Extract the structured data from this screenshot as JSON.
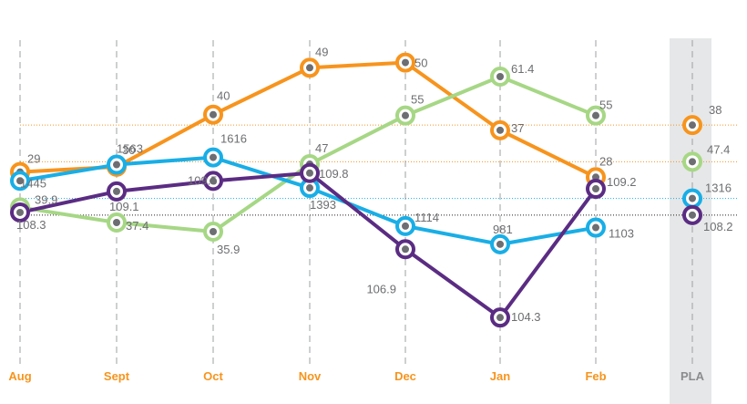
{
  "chart_data": {
    "type": "line",
    "categories": [
      "Aug",
      "Sept",
      "Oct",
      "Nov",
      "Dec",
      "Jan",
      "Feb"
    ],
    "target_label": "PLA",
    "grid": "dashed vertical lines",
    "series": [
      {
        "color": "#f7941d",
        "values": [
          29,
          30,
          40,
          49,
          50,
          37,
          28
        ],
        "labels": [
          "29",
          "30",
          "40",
          "49",
          "50",
          "37",
          "28"
        ],
        "target": 38,
        "target_label": "38",
        "ylim": [
          -8,
          55
        ]
      },
      {
        "color": "#a6d785",
        "values": [
          39.9,
          37.4,
          35.9,
          47,
          55,
          61.4,
          55
        ],
        "labels": [
          "39.9",
          "37.4",
          "35.9",
          "47",
          "55",
          "61.4",
          "55"
        ],
        "target": 47.4,
        "target_label": "47.4",
        "ylim": [
          14,
          68
        ]
      },
      {
        "color": "#19aee6",
        "values": [
          1445,
          1563,
          1616,
          1393,
          1114,
          981,
          1103
        ],
        "labels": [
          "1445",
          "1563",
          "1616",
          "1393",
          "1114",
          "981",
          "1103"
        ],
        "target": 1316,
        "target_label": "1316",
        "ylim": [
          100,
          2500
        ]
      },
      {
        "color": "#5b2c83",
        "values": [
          108.3,
          109.1,
          109.5,
          109.8,
          106.9,
          104.3,
          109.2
        ],
        "labels": [
          "108.3",
          "109.1",
          "109.5",
          "109.8",
          "106.9",
          "104.3",
          "109.2"
        ],
        "target": 108.2,
        "target_label": "108.2",
        "ylim": [
          102.5,
          115
        ]
      }
    ]
  }
}
